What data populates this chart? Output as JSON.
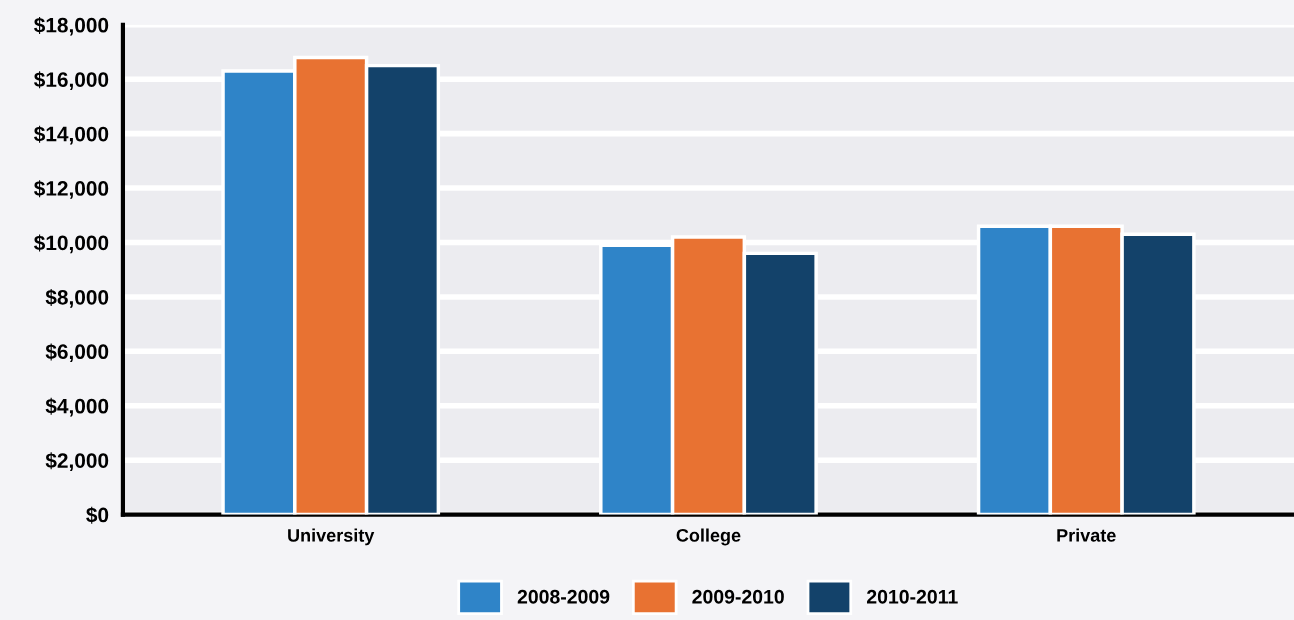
{
  "chart_data": {
    "type": "bar",
    "categories": [
      "University",
      "College",
      "Private"
    ],
    "series": [
      {
        "name": "2008-2009",
        "color": "#2f84c8",
        "values": [
          16300,
          9900,
          10600
        ]
      },
      {
        "name": "2009-2010",
        "color": "#e87232",
        "values": [
          16800,
          10200,
          10600
        ]
      },
      {
        "name": "2010-2011",
        "color": "#13426a",
        "values": [
          16500,
          9600,
          10300
        ]
      }
    ],
    "ylim": [
      0,
      18000
    ],
    "yticks": [
      {
        "value": 0,
        "label": "$0"
      },
      {
        "value": 2000,
        "label": "$2,000"
      },
      {
        "value": 4000,
        "label": "$4,000"
      },
      {
        "value": 6000,
        "label": "$6,000"
      },
      {
        "value": 8000,
        "label": "$8,000"
      },
      {
        "value": 10000,
        "label": "$10,000"
      },
      {
        "value": 12000,
        "label": "$12,000"
      },
      {
        "value": 14000,
        "label": "$14,000"
      },
      {
        "value": 16000,
        "label": "$16,000"
      },
      {
        "value": 18000,
        "label": "$18,000"
      }
    ],
    "grid": "y",
    "legend": "bottom"
  }
}
